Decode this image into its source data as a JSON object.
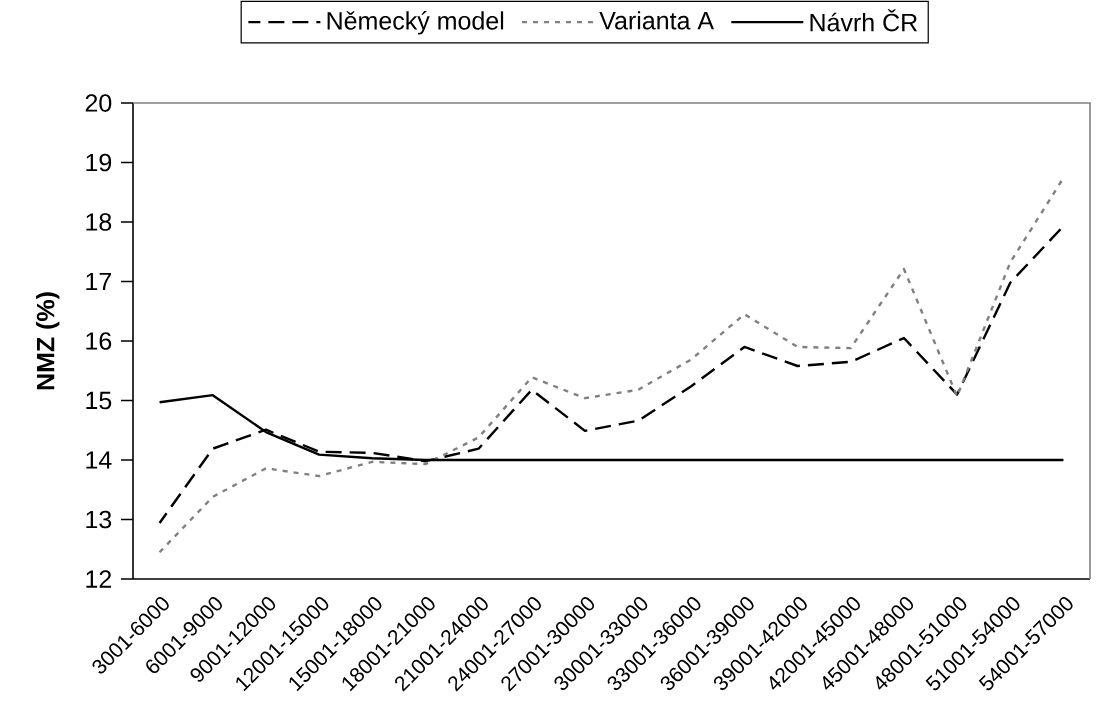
{
  "chart_data": {
    "type": "line",
    "ylabel": "NMZ (%)",
    "categories": [
      "3001-6000",
      "6001-9000",
      "9001-12000",
      "12001-15000",
      "15001-18000",
      "18001-21000",
      "21001-24000",
      "24001-27000",
      "27001-30000",
      "30001-33000",
      "33001-36000",
      "36001-39000",
      "39001-42000",
      "42001-45000",
      "45001-48000",
      "48001-51000",
      "51001-54000",
      "54001-57000"
    ],
    "series": [
      {
        "name": "Německý model",
        "color": "#000000",
        "line_style": "dashed",
        "values": [
          12.94,
          14.19,
          14.51,
          14.14,
          14.12,
          13.98,
          14.19,
          15.18,
          14.49,
          14.66,
          15.24,
          15.9,
          15.58,
          15.65,
          16.05,
          15.1,
          16.98,
          17.93
        ]
      },
      {
        "name": "Varianta A",
        "color": "#808080",
        "line_style": "dotted",
        "values": [
          12.45,
          13.38,
          13.86,
          13.73,
          13.97,
          13.93,
          14.38,
          15.39,
          15.04,
          15.18,
          15.69,
          16.45,
          15.9,
          15.88,
          17.21,
          15.07,
          17.32,
          18.74
        ]
      },
      {
        "name": "Návrh ČR",
        "color": "#000000",
        "line_style": "solid",
        "values": [
          14.97,
          15.09,
          14.47,
          14.09,
          14.03,
          14.0,
          14.0,
          14.0,
          14.0,
          14.0,
          14.0,
          14.0,
          14.0,
          14.0,
          14.0,
          14.0,
          14.0,
          14.0
        ]
      }
    ],
    "ylim": [
      12,
      20
    ],
    "yticks": [
      12,
      13,
      14,
      15,
      16,
      17,
      18,
      19,
      20
    ],
    "grid": false,
    "legend": "top",
    "marker": "none"
  }
}
